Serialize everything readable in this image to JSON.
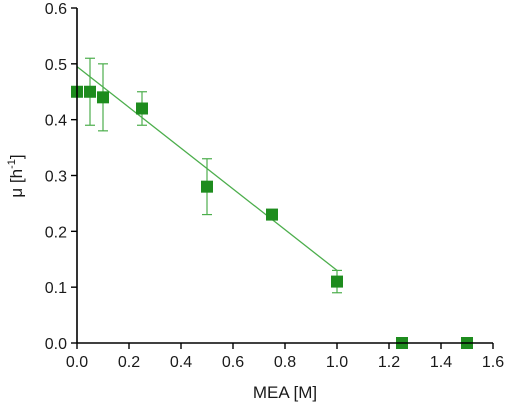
{
  "chart_data": {
    "type": "scatter",
    "xlabel": "MEA [M]",
    "ylabel_main": "μ [h",
    "ylabel_sup": "-1",
    "ylabel_close": "]",
    "xlim": [
      0.0,
      1.6
    ],
    "ylim": [
      0.0,
      0.6
    ],
    "xticks": [
      0.0,
      0.2,
      0.4,
      0.6,
      0.8,
      1.0,
      1.2,
      1.4,
      1.6
    ],
    "xtick_labels": [
      "0.0",
      "0.2",
      "0.4",
      "0.6",
      "0.8",
      "1.0",
      "1.2",
      "1.4",
      "1.6"
    ],
    "yticks": [
      0.0,
      0.1,
      0.2,
      0.3,
      0.4,
      0.5,
      0.6
    ],
    "ytick_labels": [
      "0.0",
      "0.1",
      "0.2",
      "0.3",
      "0.4",
      "0.5",
      "0.6"
    ],
    "grid": false,
    "marker_color": "#1e8c1e",
    "line_color": "#4cae4c",
    "points": [
      {
        "x": 0.0,
        "y": 0.45,
        "err": 0.0
      },
      {
        "x": 0.05,
        "y": 0.45,
        "err": 0.06
      },
      {
        "x": 0.1,
        "y": 0.44,
        "err": 0.06
      },
      {
        "x": 0.25,
        "y": 0.42,
        "err": 0.03
      },
      {
        "x": 0.5,
        "y": 0.28,
        "err": 0.05
      },
      {
        "x": 0.75,
        "y": 0.23,
        "err": 0.0
      },
      {
        "x": 1.0,
        "y": 0.11,
        "err": 0.02
      },
      {
        "x": 1.25,
        "y": 0.0,
        "err": 0.0
      },
      {
        "x": 1.5,
        "y": 0.0,
        "err": 0.0
      }
    ],
    "fit_line": {
      "x": [
        0.0,
        1.0
      ],
      "y": [
        0.495,
        0.13
      ]
    }
  }
}
